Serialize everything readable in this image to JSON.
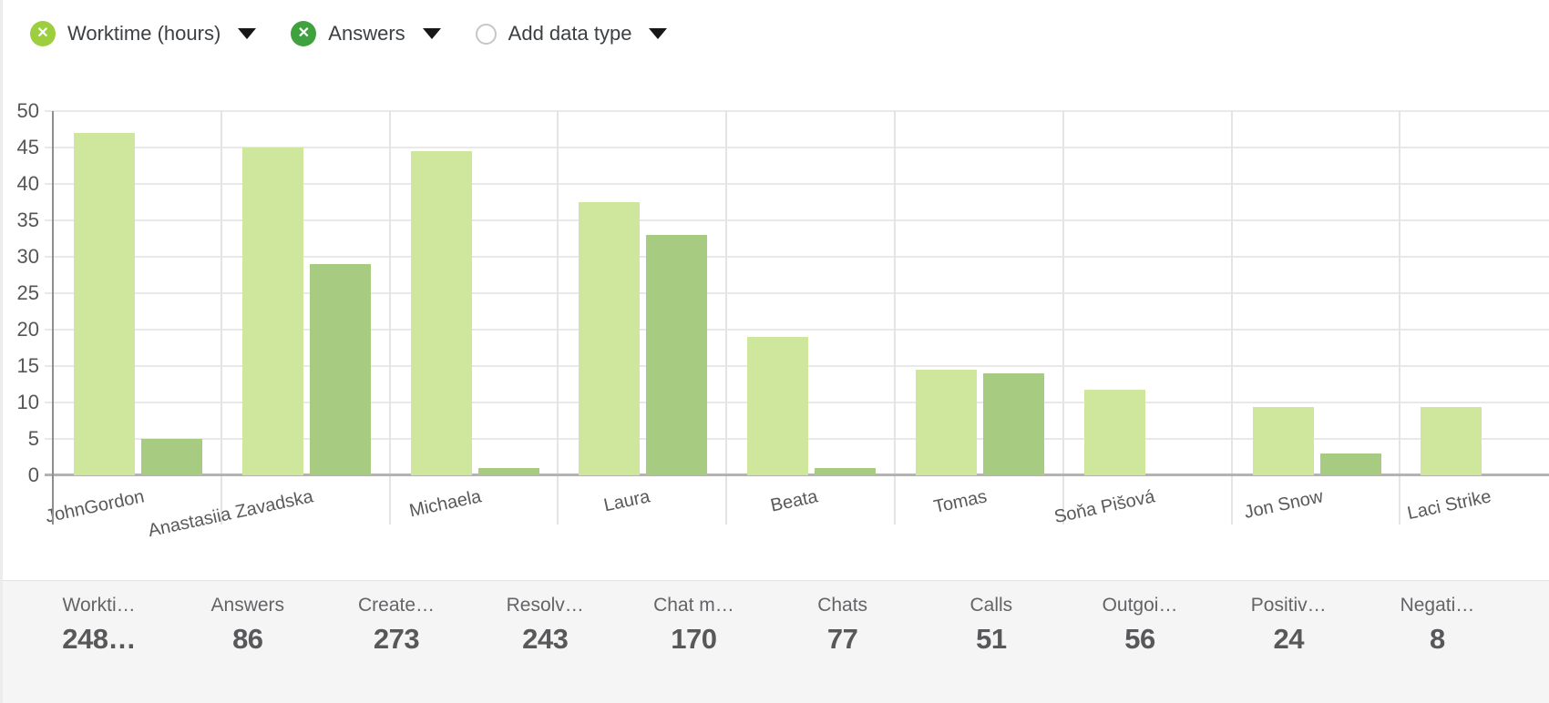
{
  "toolbar": {
    "chips": [
      {
        "label": "Worktime (hours)",
        "icon": "remove-circle-icon",
        "glyph": "✕",
        "color": "#9dce3e"
      },
      {
        "label": "Answers",
        "icon": "remove-circle-icon",
        "glyph": "✕",
        "color": "#3fa23f"
      },
      {
        "label": "Add data type",
        "icon": "radio-unselected-icon",
        "glyph": "",
        "color": "#c6c6c6"
      }
    ]
  },
  "chart_data": {
    "type": "bar",
    "title": "",
    "xlabel": "",
    "ylabel": "",
    "categories": [
      "JohnGordon",
      "Anastasiia Zavadska",
      "Michaela",
      "Laura",
      "Beata",
      "Tomas",
      "Soňa Pišová",
      "Jon Snow",
      "Laci Strike"
    ],
    "series": [
      {
        "name": "Worktime (hours)",
        "color": "#cfe79c",
        "values": [
          47,
          45,
          44.5,
          37.5,
          19,
          14.5,
          11.8,
          9.4,
          9.4
        ]
      },
      {
        "name": "Answers",
        "color": "#a7cc81",
        "values": [
          5,
          29,
          1,
          33,
          1,
          14,
          null,
          3,
          null
        ]
      }
    ],
    "ylim": [
      0,
      50
    ],
    "ytick_step": 5,
    "grid": true,
    "legend_position": "none"
  },
  "stats": [
    {
      "label": "Workti…",
      "value": "248…"
    },
    {
      "label": "Answers",
      "value": "86"
    },
    {
      "label": "Create…",
      "value": "273"
    },
    {
      "label": "Resolv…",
      "value": "243"
    },
    {
      "label": "Chat m…",
      "value": "170"
    },
    {
      "label": "Chats",
      "value": "77"
    },
    {
      "label": "Calls",
      "value": "51"
    },
    {
      "label": "Outgoi…",
      "value": "56"
    },
    {
      "label": "Positiv…",
      "value": "24"
    },
    {
      "label": "Negati…",
      "value": "8"
    }
  ],
  "colors": {
    "grid": "#e9e9e9",
    "x_axis": "#b3b3b3",
    "y_axis": "#8e8e8e",
    "panel_bg": "#f5f5f6",
    "toolbar_text": "#3c4043",
    "axis_text": "#565656",
    "category_text": "#58595b",
    "stat_label_text": "#646467",
    "stat_value_text": "#58585b"
  }
}
